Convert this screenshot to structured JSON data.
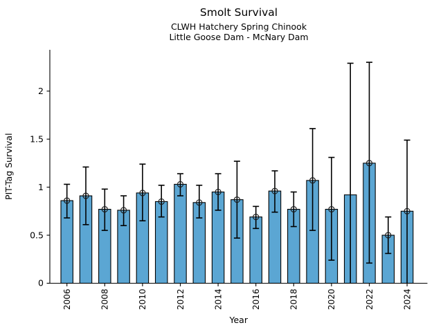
{
  "figure": {
    "background": "#FFFFFF"
  },
  "chart_data": {
    "type": "bar",
    "title": "Smolt Survival",
    "subtitle1": "CLWH Hatchery Spring Chinook",
    "subtitle2": "Little Goose Dam - McNary Dam",
    "xlabel": "Year",
    "ylabel": "PIT-Tag Survival",
    "categories": [
      "2006",
      "2007",
      "2008",
      "2009",
      "2010",
      "2011",
      "2012",
      "2013",
      "2014",
      "2015",
      "2016",
      "2017",
      "2018",
      "2019",
      "2020",
      "2021",
      "2022",
      "2023",
      "2024"
    ],
    "values": [
      0.86,
      0.91,
      0.77,
      0.76,
      0.94,
      0.85,
      1.03,
      0.84,
      0.95,
      0.87,
      0.69,
      0.96,
      0.77,
      1.07,
      0.77,
      0.92,
      1.25,
      0.5,
      0.75
    ],
    "error_low": [
      0.68,
      0.61,
      0.55,
      0.6,
      0.65,
      0.69,
      0.91,
      0.68,
      0.76,
      0.47,
      0.57,
      0.74,
      0.59,
      0.55,
      0.24,
      0.0,
      0.21,
      0.31,
      0.0
    ],
    "error_high": [
      1.03,
      1.21,
      0.98,
      0.91,
      1.24,
      1.02,
      1.14,
      1.02,
      1.14,
      1.27,
      0.8,
      1.17,
      0.95,
      1.61,
      1.31,
      2.29,
      2.3,
      0.69,
      1.49
    ],
    "error_low_capped": [
      true,
      true,
      true,
      true,
      true,
      true,
      true,
      true,
      true,
      true,
      true,
      true,
      true,
      true,
      true,
      false,
      true,
      true,
      false
    ],
    "marker_shown": [
      true,
      true,
      true,
      true,
      true,
      true,
      true,
      true,
      true,
      true,
      true,
      true,
      true,
      true,
      true,
      false,
      true,
      true,
      true
    ],
    "ylim": [
      0,
      2.43
    ],
    "yticks": [
      0,
      0.5,
      1,
      1.5,
      2
    ],
    "ytick_labels": [
      "0",
      "0.5",
      "1",
      "1.5",
      "2"
    ],
    "xtick_labels": [
      "2006",
      "2008",
      "2010",
      "2012",
      "2014",
      "2016",
      "2018",
      "2020",
      "2022",
      "2024"
    ],
    "grid": false,
    "legend_position": "none",
    "bar_color": "#5BA6D3",
    "bar_edge_color": "#000000",
    "error_color": "#000000",
    "marker_style": "open-circle",
    "marker_color": "#1a1a1a"
  }
}
